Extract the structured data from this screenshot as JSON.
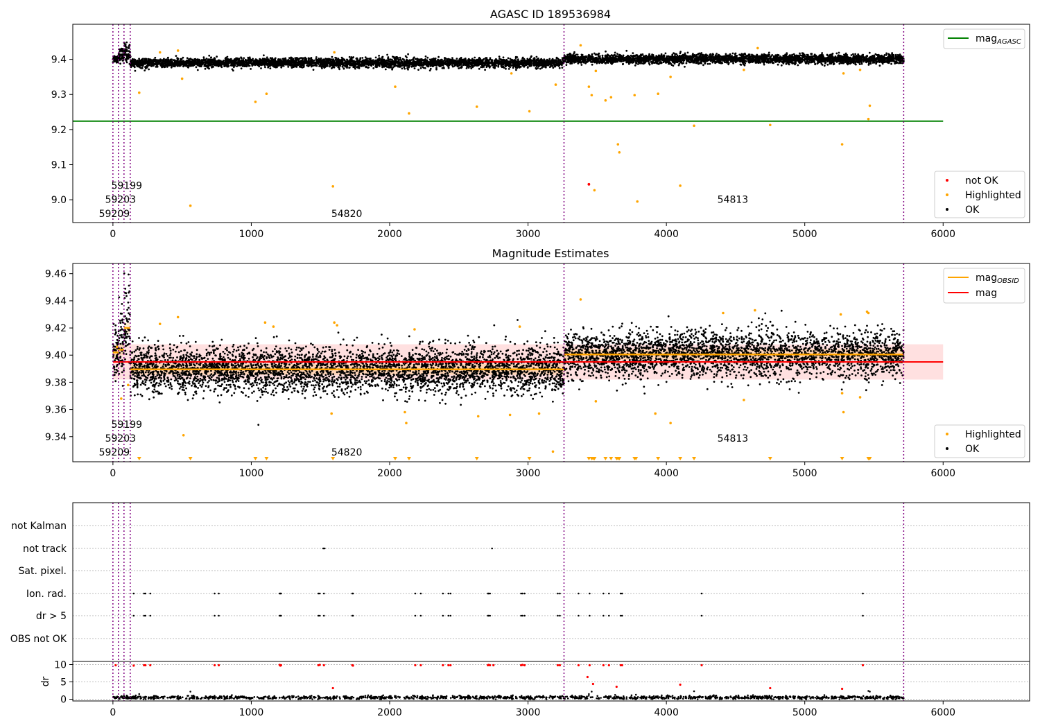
{
  "chart_data": [
    {
      "type": "scatter",
      "title": "AGASC ID 189536984",
      "xlim": [
        -290,
        6625
      ],
      "ylim": [
        8.935,
        9.5
      ],
      "x_ticks": [
        0,
        1000,
        2000,
        3000,
        4000,
        5000,
        6000
      ],
      "y_ticks": [
        9.0,
        9.1,
        9.2,
        9.3,
        9.4
      ],
      "y_tick_labels": [
        "9.0",
        "9.1",
        "9.2",
        "9.3",
        "9.4"
      ],
      "vlines_x": [
        0,
        40,
        80,
        125,
        3260,
        5715
      ],
      "colors": {
        "ok": "#000000",
        "highlighted": "#ffa500",
        "not_ok": "#ff0000",
        "mag_agasc": "#008000",
        "vline": "#800080"
      },
      "legend_top": {
        "position": "top-right",
        "entries": [
          {
            "label": "mag",
            "subscript": "AGASC",
            "color": "#008000",
            "kind": "line"
          }
        ]
      },
      "legend_bottom": {
        "position": "lower-right",
        "entries": [
          {
            "label": "not OK",
            "color": "#ff0000",
            "kind": "dot"
          },
          {
            "label": "Highlighted",
            "color": "#ffa500",
            "kind": "dot"
          },
          {
            "label": "OK",
            "color": "#000000",
            "kind": "dot"
          }
        ]
      },
      "series": {
        "mag_agasc": {
          "value": 9.224,
          "x_range": [
            -290,
            6000
          ]
        },
        "ok_segments": [
          {
            "x": [
              0,
              40
            ],
            "mean": 9.402,
            "spread": 0.006
          },
          {
            "x": [
              40,
              80
            ],
            "mean": 9.412,
            "spread": 0.01
          },
          {
            "x": [
              80,
              125
            ],
            "mean": 9.418,
            "spread": 0.014
          },
          {
            "x": [
              125,
              3260
            ],
            "mean": 9.39,
            "spread": 0.0065
          },
          {
            "x": [
              3260,
              5715
            ],
            "mean": 9.401,
            "spread": 0.0065
          }
        ],
        "not_ok_points": [
          [
            3440,
            9.044
          ]
        ],
        "highlighted_points": [
          [
            190,
            9.305
          ],
          [
            560,
            8.983
          ],
          [
            1030,
            9.279
          ],
          [
            1110,
            9.302
          ],
          [
            1590,
            9.038
          ],
          [
            2040,
            9.322
          ],
          [
            2140,
            9.246
          ],
          [
            2630,
            9.265
          ],
          [
            3010,
            9.252
          ],
          [
            3200,
            9.328
          ],
          [
            3440,
            9.322
          ],
          [
            3460,
            9.298
          ],
          [
            3480,
            9.027
          ],
          [
            3560,
            9.283
          ],
          [
            3600,
            9.292
          ],
          [
            3650,
            9.158
          ],
          [
            3660,
            9.135
          ],
          [
            3770,
            9.298
          ],
          [
            3790,
            8.995
          ],
          [
            3940,
            9.302
          ],
          [
            4100,
            9.04
          ],
          [
            4200,
            9.211
          ],
          [
            4750,
            9.213
          ],
          [
            5270,
            9.158
          ],
          [
            5460,
            9.23
          ],
          [
            5470,
            9.268
          ],
          [
            340,
            9.42
          ],
          [
            470,
            9.425
          ],
          [
            1600,
            9.42
          ],
          [
            2880,
            9.36
          ],
          [
            4560,
            9.37
          ],
          [
            5280,
            9.36
          ],
          [
            5400,
            9.37
          ],
          [
            3380,
            9.44
          ],
          [
            4660,
            9.432
          ],
          [
            500,
            9.345
          ],
          [
            3490,
            9.367
          ],
          [
            4030,
            9.35
          ]
        ],
        "group_labels": [
          {
            "text": "59199",
            "x": 100,
            "y": 9.031
          },
          {
            "text": "59203",
            "x": 55,
            "y": 8.991
          },
          {
            "text": "59209",
            "x": 10,
            "y": 8.951
          },
          {
            "text": "54820",
            "x": 1690,
            "y": 8.951
          },
          {
            "text": "54813",
            "x": 4480,
            "y": 8.991
          }
        ]
      }
    },
    {
      "type": "scatter",
      "title": "Magnitude Estimates",
      "xlim": [
        -290,
        6625
      ],
      "ylim": [
        9.3215,
        9.4675
      ],
      "x_ticks": [
        0,
        1000,
        2000,
        3000,
        4000,
        5000,
        6000
      ],
      "y_ticks": [
        9.34,
        9.36,
        9.38,
        9.4,
        9.42,
        9.44,
        9.46
      ],
      "y_tick_labels": [
        "9.34",
        "9.36",
        "9.38",
        "9.40",
        "9.42",
        "9.44",
        "9.46"
      ],
      "vlines_x": [
        0,
        40,
        80,
        125,
        3260,
        5715
      ],
      "colors": {
        "ok": "#000000",
        "highlighted": "#ffa500",
        "mag_obsid": "#ffa500",
        "mag": "#ff0000",
        "band": "#ff0000",
        "vline": "#800080"
      },
      "legend_top": {
        "position": "top-right",
        "entries": [
          {
            "label": "mag",
            "subscript": "OBSID",
            "color": "#ffa500",
            "kind": "line"
          },
          {
            "label": "mag",
            "color": "#ff0000",
            "kind": "line"
          }
        ]
      },
      "legend_bottom": {
        "position": "lower-right",
        "entries": [
          {
            "label": "Highlighted",
            "color": "#ffa500",
            "kind": "dot"
          },
          {
            "label": "OK",
            "color": "#000000",
            "kind": "dot"
          }
        ]
      },
      "series": {
        "mag": {
          "value": 9.395,
          "band": [
            9.382,
            9.408
          ],
          "x_range": [
            0,
            6000
          ]
        },
        "mag_obsid_segments": [
          {
            "x": [
              0,
              40
            ],
            "value": 9.402
          },
          {
            "x": [
              40,
              80
            ],
            "value": 9.404
          },
          {
            "x": [
              80,
              125
            ],
            "value": 9.42
          },
          {
            "x": [
              125,
              3260
            ],
            "value": 9.3895
          },
          {
            "x": [
              3260,
              5715
            ],
            "value": 9.4005
          }
        ],
        "ok_segments": [
          {
            "x": [
              0,
              40
            ],
            "mean": 9.402,
            "spread": 0.009
          },
          {
            "x": [
              40,
              80
            ],
            "mean": 9.41,
            "spread": 0.012
          },
          {
            "x": [
              80,
              125
            ],
            "mean": 9.42,
            "spread": 0.015
          },
          {
            "x": [
              125,
              3260
            ],
            "mean": 9.3895,
            "spread": 0.0085
          },
          {
            "x": [
              3260,
              5715
            ],
            "mean": 9.4005,
            "spread": 0.0085
          }
        ],
        "highlighted_points": [
          [
            30,
            9.406
          ],
          [
            60,
            9.368
          ],
          [
            110,
            9.378
          ],
          [
            340,
            9.423
          ],
          [
            470,
            9.428
          ],
          [
            510,
            9.341
          ],
          [
            1100,
            9.424
          ],
          [
            1160,
            9.421
          ],
          [
            1580,
            9.357
          ],
          [
            1600,
            9.424
          ],
          [
            1620,
            9.422
          ],
          [
            2110,
            9.358
          ],
          [
            2120,
            9.35
          ],
          [
            2180,
            9.419
          ],
          [
            2640,
            9.355
          ],
          [
            2870,
            9.356
          ],
          [
            2940,
            9.421
          ],
          [
            3080,
            9.357
          ],
          [
            3180,
            9.329
          ],
          [
            3380,
            9.441
          ],
          [
            3490,
            9.366
          ],
          [
            3920,
            9.357
          ],
          [
            4030,
            9.35
          ],
          [
            4410,
            9.431
          ],
          [
            4560,
            9.367
          ],
          [
            4640,
            9.433
          ],
          [
            5270,
            9.372
          ],
          [
            5280,
            9.358
          ],
          [
            5400,
            9.369
          ],
          [
            5450,
            9.432
          ],
          [
            5460,
            9.431
          ],
          [
            5260,
            9.43
          ]
        ],
        "lower_limit_markers_x": [
          190,
          560,
          1030,
          1110,
          1590,
          2040,
          2140,
          2630,
          3010,
          3440,
          3460,
          3470,
          3480,
          3560,
          3600,
          3640,
          3650,
          3660,
          3770,
          3780,
          3940,
          4100,
          4200,
          4750,
          5270,
          5460,
          5470
        ],
        "group_labels": [
          {
            "text": "59199",
            "x": 100,
            "y": 9.3466
          },
          {
            "text": "59203",
            "x": 55,
            "y": 9.3363
          },
          {
            "text": "59209",
            "x": 10,
            "y": 9.3261
          },
          {
            "text": "54820",
            "x": 1690,
            "y": 9.3261
          },
          {
            "text": "54813",
            "x": 4480,
            "y": 9.3363
          }
        ]
      }
    },
    {
      "type": "scatter",
      "title": "",
      "xlim": [
        -290,
        6625
      ],
      "x_ticks": [
        0,
        1000,
        2000,
        3000,
        4000,
        5000,
        6000
      ],
      "flag_rows": [
        "not Kalman",
        "not track",
        "Sat. pixel.",
        "Ion. rad.",
        "dr > 5",
        "OBS not OK"
      ],
      "dr_ylim": [
        -0.5,
        10.5
      ],
      "dr_y_ticks": [
        0,
        5,
        10
      ],
      "dr_ylabel": "dr",
      "vlines_x": [
        0,
        40,
        80,
        125,
        3260,
        5715
      ],
      "colors": {
        "flag": "#000000",
        "dr_ok": "#000000",
        "dr_high": "#ff0000",
        "grid": "#bbbbbb",
        "vline": "#800080"
      },
      "flags": {
        "not Kalman": [],
        "not track": [
          1520,
          1530,
          2740
        ],
        "Sat. pixel.": [],
        "Ion. rad.": [
          150,
          225,
          235,
          270,
          735,
          765,
          1205,
          1210,
          1215,
          1485,
          1495,
          1525,
          1730,
          1735,
          2185,
          2225,
          2385,
          2425,
          2440,
          2710,
          2715,
          2725,
          2950,
          2960,
          2975,
          3215,
          3230,
          3365,
          3445,
          3545,
          3585,
          3670,
          3680,
          4255,
          5420
        ],
        "dr > 5": [
          150,
          225,
          235,
          270,
          735,
          765,
          1205,
          1210,
          1215,
          1485,
          1495,
          1525,
          1730,
          1735,
          2185,
          2225,
          2385,
          2425,
          2440,
          2710,
          2715,
          2725,
          2950,
          2960,
          2975,
          3215,
          3230,
          3365,
          3445,
          3545,
          3585,
          3670,
          3680,
          4255,
          5420
        ],
        "OBS not OK": []
      },
      "dr": {
        "baseline_range": [
          0,
          5715
        ],
        "baseline_mean": 0.5,
        "high_points": [
          [
            20,
            9.8
          ],
          [
            150,
            9.7
          ],
          [
            225,
            9.8
          ],
          [
            235,
            9.8
          ],
          [
            270,
            9.8
          ],
          [
            735,
            9.8
          ],
          [
            765,
            9.8
          ],
          [
            1205,
            9.9
          ],
          [
            1210,
            9.7
          ],
          [
            1215,
            9.8
          ],
          [
            1485,
            9.8
          ],
          [
            1495,
            9.9
          ],
          [
            1525,
            9.8
          ],
          [
            1730,
            9.8
          ],
          [
            1735,
            9.7
          ],
          [
            2185,
            9.8
          ],
          [
            2225,
            9.8
          ],
          [
            2385,
            9.8
          ],
          [
            2425,
            9.8
          ],
          [
            2440,
            9.8
          ],
          [
            2710,
            9.8
          ],
          [
            2715,
            9.9
          ],
          [
            2725,
            9.8
          ],
          [
            2750,
            9.8
          ],
          [
            2950,
            9.8
          ],
          [
            2960,
            9.9
          ],
          [
            2975,
            9.8
          ],
          [
            3215,
            9.8
          ],
          [
            3230,
            9.8
          ],
          [
            3365,
            9.8
          ],
          [
            3445,
            9.8
          ],
          [
            3545,
            9.8
          ],
          [
            3585,
            9.8
          ],
          [
            3670,
            9.8
          ],
          [
            3680,
            9.8
          ],
          [
            4255,
            9.8
          ],
          [
            5420,
            9.8
          ],
          [
            3430,
            6.4
          ],
          [
            3470,
            4.4
          ],
          [
            1590,
            3.2
          ],
          [
            3640,
            3.6
          ],
          [
            4100,
            4.2
          ],
          [
            4750,
            3.2
          ],
          [
            5270,
            3.0
          ]
        ],
        "low_points": [
          [
            190,
            1.5
          ],
          [
            560,
            2.2
          ],
          [
            3440,
            1.5
          ],
          [
            3460,
            2.2
          ],
          [
            4200,
            2.3
          ],
          [
            5460,
            2.4
          ],
          [
            5470,
            2.2
          ],
          [
            3780,
            1.3
          ]
        ]
      }
    }
  ]
}
